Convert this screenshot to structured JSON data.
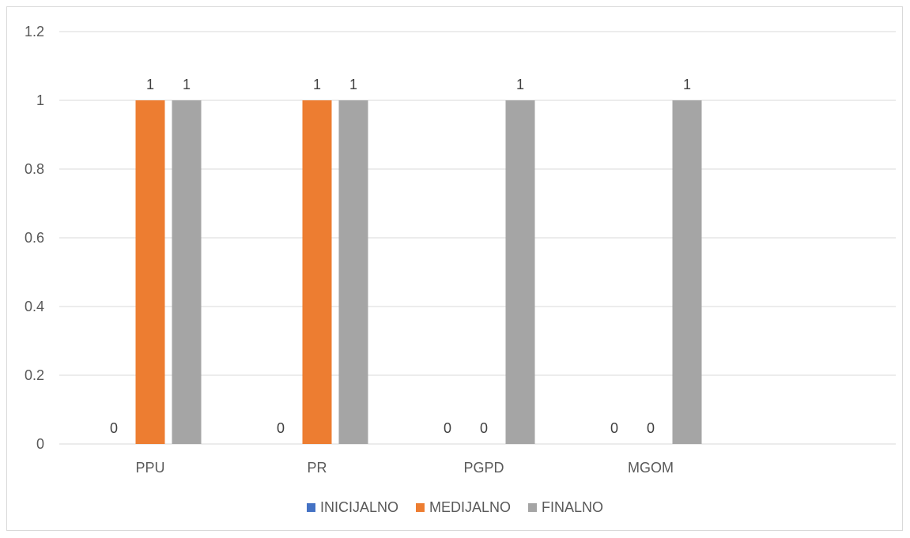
{
  "chart_data": {
    "type": "bar",
    "title": "",
    "xlabel": "",
    "ylabel": "",
    "categories": [
      "PPU",
      "PR",
      "PGPD",
      "MGOM"
    ],
    "ylim": [
      0,
      1.2
    ],
    "yticks": [
      "0",
      "0.2",
      "0.4",
      "0.6",
      "0.8",
      "1",
      "1.2"
    ],
    "grid": true,
    "legend_position": "bottom",
    "series": [
      {
        "name": "INICIJALNO",
        "color": "#4472c4",
        "values": [
          0,
          0,
          0,
          0
        ]
      },
      {
        "name": "MEDIJALNO",
        "color": "#ed7d31",
        "values": [
          1,
          1,
          0,
          0
        ]
      },
      {
        "name": "FINALNO",
        "color": "#a5a5a5",
        "values": [
          1,
          1,
          1,
          1
        ]
      }
    ]
  }
}
